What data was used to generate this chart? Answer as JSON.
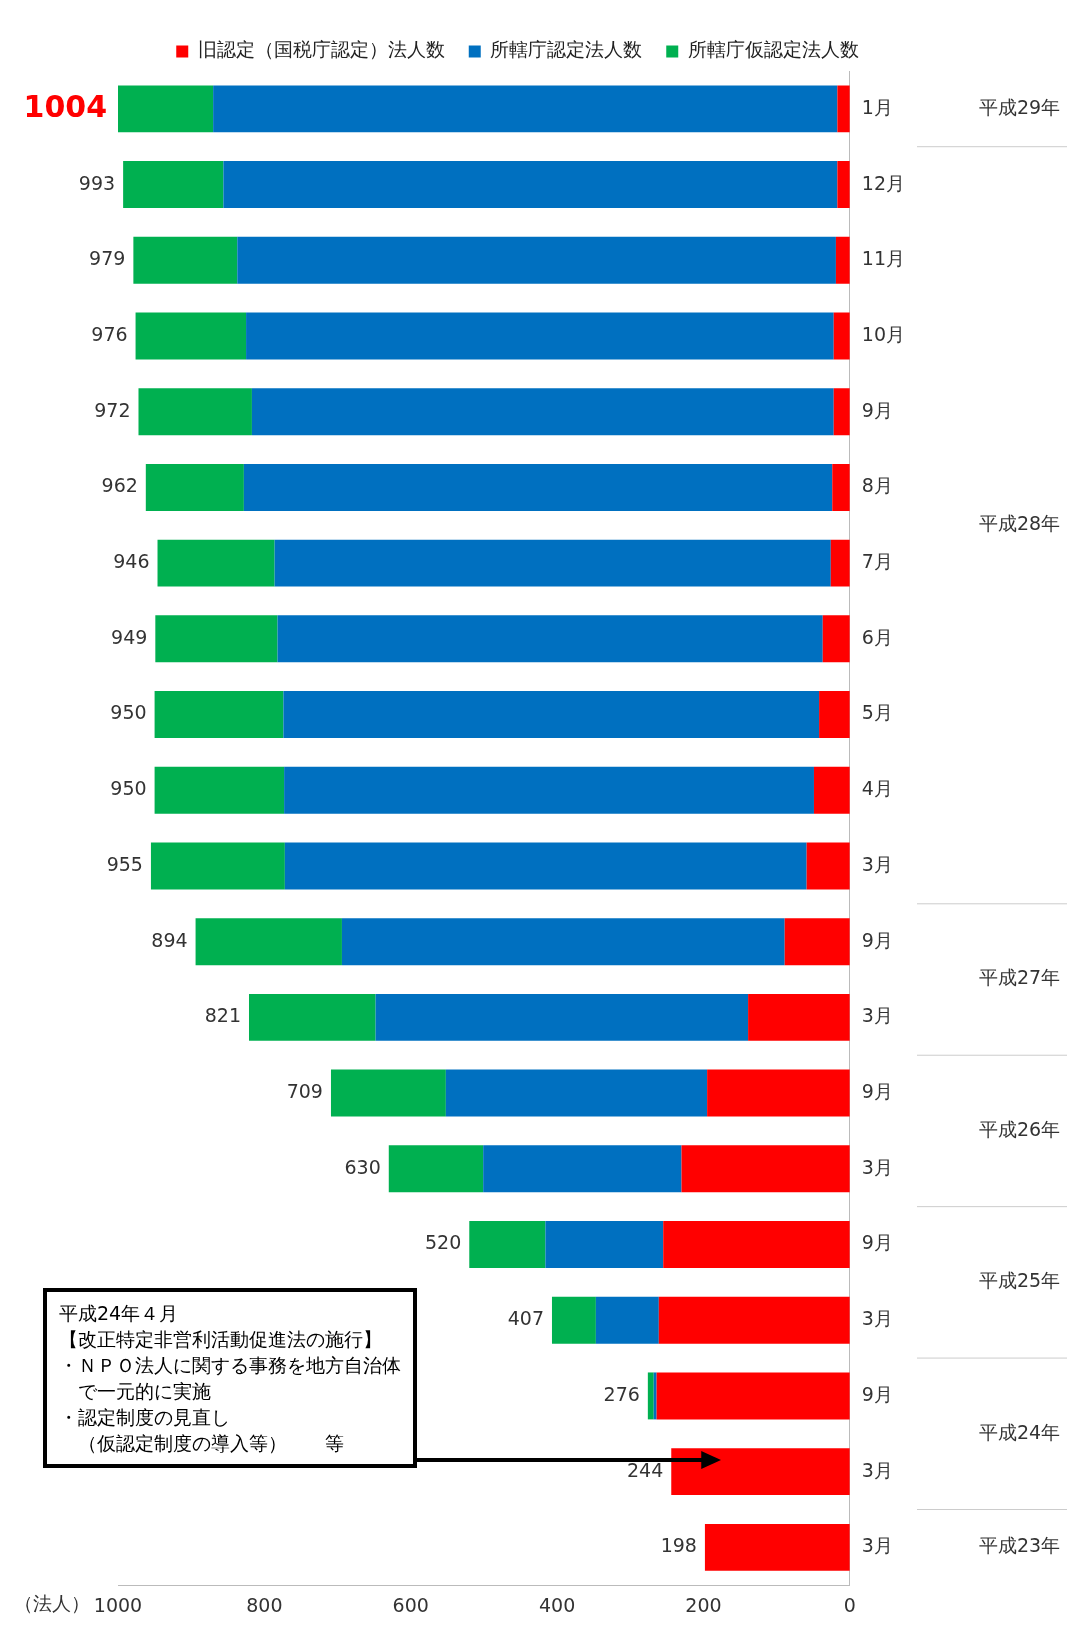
{
  "chart_data": {
    "type": "bar",
    "stacked": true,
    "orientation": "horizontal",
    "xlabel": "（法人）",
    "categories": [
      "1月",
      "12月",
      "11月",
      "10月",
      "9月",
      "8月",
      "7月",
      "6月",
      "5月",
      "4月",
      "3月",
      "9月",
      "3月",
      "9月",
      "3月",
      "9月",
      "3月",
      "9月",
      "3月",
      "3月"
    ],
    "series": [
      {
        "name": "旧認定（国税庁認定）法人数",
        "color": "#ff0000",
        "values": [
          17,
          17,
          19,
          22,
          22,
          24,
          26,
          37,
          42,
          49,
          59,
          89,
          139,
          195,
          230,
          255,
          261,
          264,
          244,
          198
        ]
      },
      {
        "name": "所轄庁認定法人数",
        "color": "#0070c0",
        "values": [
          853,
          839,
          818,
          803,
          795,
          804,
          760,
          745,
          732,
          724,
          713,
          605,
          509,
          357,
          271,
          161,
          86,
          4,
          null,
          null
        ]
      },
      {
        "name": "所轄庁仮認定法人数",
        "color": "#00b050",
        "values": [
          134,
          137,
          142,
          151,
          155,
          134,
          160,
          167,
          176,
          177,
          183,
          200,
          173,
          157,
          129,
          104,
          60,
          8,
          null,
          null
        ]
      }
    ],
    "totals": [
      "1004",
      "993",
      "979",
      "976",
      "972",
      "962",
      "946",
      "949",
      "950",
      "950",
      "955",
      "894",
      "821",
      "709",
      "630",
      "520",
      "407",
      "276",
      "244",
      "198"
    ],
    "xlim": [
      1000,
      0
    ],
    "xticks": [
      1000,
      800,
      600,
      400,
      200,
      0
    ],
    "grid": false,
    "legend": "top",
    "annotations": [
      "平成29年",
      "平成28年",
      "平成27年",
      "平成26年",
      "平成25年",
      "平成24年",
      "平成23年",
      "平成24年４月",
      "【改正特定非営利活動促進法の施行】",
      "・ＮＰＯ法人に関する事務を地方自治体",
      "　で一元的に実施",
      "・認定制度の見直し",
      "　（仮認定制度の導入等）　　等"
    ]
  }
}
